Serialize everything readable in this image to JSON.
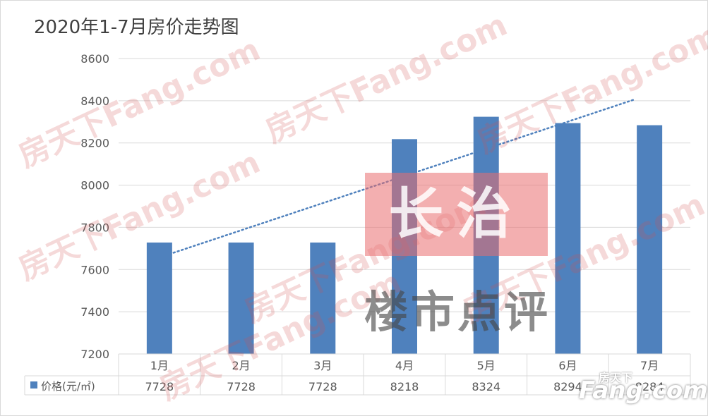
{
  "chart_data": {
    "type": "bar",
    "title": "2020年1-7月房价走势图",
    "categories": [
      "1月",
      "2月",
      "3月",
      "4月",
      "5月",
      "6月",
      "7月"
    ],
    "series": [
      {
        "name": "价格(元/㎡)",
        "values": [
          7728,
          7728,
          7728,
          8218,
          8324,
          8294,
          8284
        ],
        "color": "#4f81bd"
      }
    ],
    "trendline": {
      "type": "linear",
      "style": "dotted",
      "color": "#4f81bd",
      "from_category": "1月",
      "to_category": "7月"
    },
    "table_row_values": [
      "7728",
      "7728",
      "7728",
      "8218",
      "8324",
      "8294",
      "8284"
    ],
    "ylim": [
      7200,
      8600
    ],
    "yticks": [
      7200,
      7400,
      7600,
      7800,
      8000,
      8200,
      8400,
      8600
    ],
    "ytick_labels": [
      "7200",
      "7400",
      "7600",
      "7800",
      "8000",
      "8200",
      "8400",
      "8600"
    ],
    "grid": true,
    "legend": "data-table-row",
    "xlabel": "",
    "ylabel": ""
  },
  "watermarks": {
    "site": "房天下Fang.com",
    "badge_top": "长治",
    "badge_bottom": "楼市点评",
    "logo_top": "房天下",
    "logo_brand": "Fang.com"
  },
  "colors": {
    "bar": "#4f81bd",
    "grid": "#d9d9d9",
    "axis_text": "#595959",
    "title": "#404040"
  }
}
